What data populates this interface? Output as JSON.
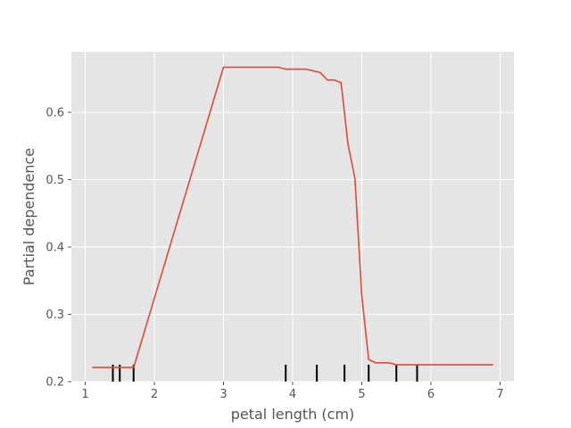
{
  "chart_data": {
    "type": "line",
    "xlabel": "petal length (cm)",
    "ylabel": "Partial dependence",
    "xlim": [
      0.8,
      7.2
    ],
    "ylim": [
      0.2,
      0.69
    ],
    "x_ticks": [
      1,
      2,
      3,
      4,
      5,
      6,
      7
    ],
    "y_ticks": [
      0.2,
      0.3,
      0.4,
      0.5,
      0.6
    ],
    "x_tick_labels": [
      "1",
      "2",
      "3",
      "4",
      "5",
      "6",
      "7"
    ],
    "y_tick_labels": [
      "0.2",
      "0.3",
      "0.4",
      "0.5",
      "0.6"
    ],
    "grid": true,
    "background": "#e5e5e5",
    "grid_color": "#ffffff",
    "series": [
      {
        "color": "#e24a33",
        "x": [
          1.1,
          1.7,
          3.0,
          3.8,
          3.9,
          4.2,
          4.4,
          4.5,
          4.6,
          4.7,
          4.8,
          4.9,
          5.0,
          5.1,
          5.2,
          5.4,
          5.5,
          6.0,
          6.9
        ],
        "y": [
          0.221,
          0.221,
          0.667,
          0.667,
          0.664,
          0.664,
          0.659,
          0.648,
          0.648,
          0.644,
          0.553,
          0.502,
          0.328,
          0.233,
          0.228,
          0.228,
          0.225,
          0.225,
          0.225
        ]
      }
    ],
    "deciles": [
      1.4,
      1.5,
      1.7,
      3.9,
      4.35,
      4.75,
      5.1,
      5.5,
      5.8
    ]
  }
}
